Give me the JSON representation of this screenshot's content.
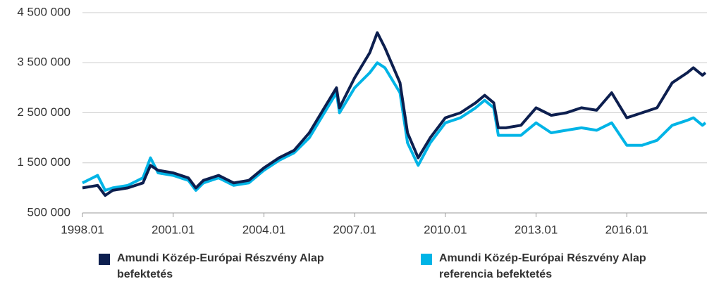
{
  "chart_data": {
    "type": "line",
    "x": [
      1998.0,
      1998.5,
      1998.75,
      1999.0,
      1999.5,
      2000.0,
      2000.25,
      2000.5,
      2001.0,
      2001.5,
      2001.75,
      2002.0,
      2002.5,
      2003.0,
      2003.5,
      2004.0,
      2004.5,
      2005.0,
      2005.5,
      2006.0,
      2006.4,
      2006.5,
      2007.0,
      2007.5,
      2007.75,
      2008.0,
      2008.5,
      2008.75,
      2009.1,
      2009.5,
      2010.0,
      2010.5,
      2011.0,
      2011.3,
      2011.6,
      2011.75,
      2012.0,
      2012.5,
      2013.0,
      2013.5,
      2014.0,
      2014.5,
      2015.0,
      2015.5,
      2016.0,
      2016.5,
      2017.0,
      2017.5,
      2018.0,
      2018.2,
      2018.5,
      2018.6
    ],
    "series": [
      {
        "name": "Amundi Közép-Európai Részvény Alap befektetés",
        "color": "#0d1f4f",
        "values": [
          1000000,
          1050000,
          850000,
          950000,
          1000000,
          1100000,
          1450000,
          1350000,
          1300000,
          1200000,
          1000000,
          1150000,
          1250000,
          1100000,
          1150000,
          1400000,
          1600000,
          1750000,
          2100000,
          2600000,
          3000000,
          2600000,
          3200000,
          3700000,
          4100000,
          3800000,
          3100000,
          2100000,
          1600000,
          2000000,
          2400000,
          2500000,
          2700000,
          2850000,
          2700000,
          2200000,
          2200000,
          2250000,
          2600000,
          2450000,
          2500000,
          2600000,
          2550000,
          2900000,
          2400000,
          2500000,
          2600000,
          3100000,
          3300000,
          3400000,
          3250000,
          3300000
        ]
      },
      {
        "name": "Amundi Közép-Európai Részvény Alap referencia befektetés",
        "color": "#00b4e6",
        "values": [
          1100000,
          1250000,
          950000,
          1000000,
          1050000,
          1200000,
          1600000,
          1300000,
          1250000,
          1150000,
          950000,
          1100000,
          1200000,
          1050000,
          1100000,
          1350000,
          1550000,
          1700000,
          2000000,
          2500000,
          2900000,
          2500000,
          3000000,
          3300000,
          3500000,
          3400000,
          2900000,
          1900000,
          1450000,
          1900000,
          2300000,
          2400000,
          2600000,
          2750000,
          2600000,
          2050000,
          2050000,
          2050000,
          2300000,
          2100000,
          2150000,
          2200000,
          2150000,
          2300000,
          1850000,
          1850000,
          1950000,
          2250000,
          2350000,
          2400000,
          2250000,
          2300000
        ]
      }
    ],
    "xlim": [
      1998.0,
      2018.65
    ],
    "xticks": [
      {
        "value": 1998,
        "label": "1998.01"
      },
      {
        "value": 2001,
        "label": "2001.01"
      },
      {
        "value": 2004,
        "label": "2004.01"
      },
      {
        "value": 2007,
        "label": "2007.01"
      },
      {
        "value": 2010,
        "label": "2010.01"
      },
      {
        "value": 2013,
        "label": "2013.01"
      },
      {
        "value": 2016,
        "label": "2016.01"
      }
    ],
    "ylim": [
      500000,
      4500000
    ],
    "yticks": [
      {
        "value": 500000,
        "label": "500 000"
      },
      {
        "value": 1500000,
        "label": "1 500 000"
      },
      {
        "value": 2500000,
        "label": "2 500 000"
      },
      {
        "value": 3500000,
        "label": "3 500 000"
      },
      {
        "value": 4500000,
        "label": "4 500 000"
      }
    ],
    "grid": true
  }
}
